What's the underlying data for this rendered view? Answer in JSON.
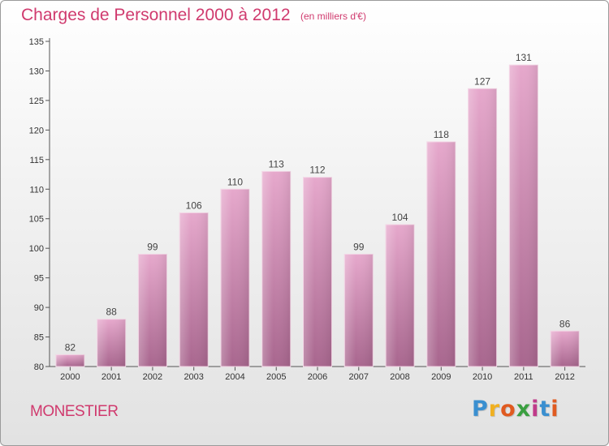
{
  "header": {
    "title": "Charges de Personnel 2000 à 2012",
    "subtitle": "(en milliers d'€)"
  },
  "footer": {
    "place": "MONESTIER",
    "logo_text": "Proxiti"
  },
  "colors": {
    "title": "#d03a6e",
    "bar_top": "#e6a8cc",
    "bar_bottom": "#a8668e",
    "axis": "#555555",
    "logo": [
      "#3a8fd0",
      "#f0b020",
      "#e05a20",
      "#3a9f40",
      "#c03a8a",
      "#3a8fd0",
      "#e05a20"
    ]
  },
  "chart_data": {
    "type": "bar",
    "categories": [
      "2000",
      "2001",
      "2002",
      "2003",
      "2004",
      "2005",
      "2006",
      "2007",
      "2008",
      "2009",
      "2010",
      "2011",
      "2012"
    ],
    "values": [
      82,
      88,
      99,
      106,
      110,
      113,
      112,
      99,
      104,
      118,
      127,
      131,
      86
    ],
    "ylim": [
      80,
      135
    ],
    "yticks": [
      80,
      85,
      90,
      95,
      100,
      105,
      110,
      115,
      120,
      125,
      130,
      135
    ],
    "grid": false,
    "legend": "none"
  }
}
